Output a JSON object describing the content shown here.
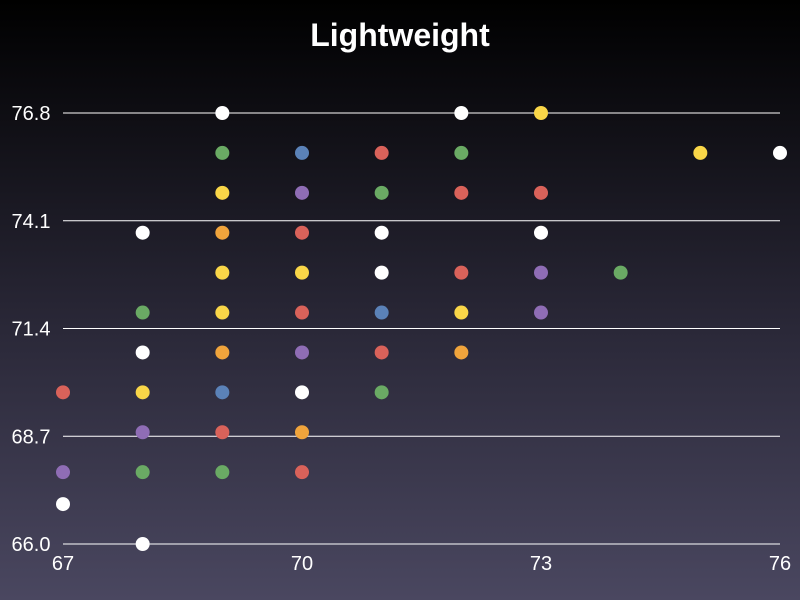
{
  "chart_data": {
    "type": "scatter",
    "title": "Lightweight",
    "xlabel": "",
    "ylabel": "",
    "xlim": [
      67,
      76
    ],
    "ylim": [
      66.0,
      76.8
    ],
    "x_ticks": [
      "67",
      "70",
      "73",
      "76"
    ],
    "y_ticks": [
      "66.0",
      "68.7",
      "71.4",
      "74.1",
      "76.8"
    ],
    "grid": "horizontal",
    "legend": "none",
    "colors": {
      "white": "#ffffff",
      "yellow": "#f9d648",
      "orange": "#f0a43c",
      "red": "#d9625a",
      "green": "#6aaa64",
      "blue": "#5b82b8",
      "purple": "#8f6db5"
    },
    "points": [
      {
        "x": 69,
        "y": 76.8,
        "color": "white"
      },
      {
        "x": 72,
        "y": 76.8,
        "color": "white"
      },
      {
        "x": 73,
        "y": 76.8,
        "color": "yellow"
      },
      {
        "x": 69,
        "y": 75.8,
        "color": "green"
      },
      {
        "x": 70,
        "y": 75.8,
        "color": "blue"
      },
      {
        "x": 71,
        "y": 75.8,
        "color": "red"
      },
      {
        "x": 72,
        "y": 75.8,
        "color": "green"
      },
      {
        "x": 75,
        "y": 75.8,
        "color": "yellow"
      },
      {
        "x": 76,
        "y": 75.8,
        "color": "white"
      },
      {
        "x": 69,
        "y": 74.8,
        "color": "yellow"
      },
      {
        "x": 70,
        "y": 74.8,
        "color": "purple"
      },
      {
        "x": 71,
        "y": 74.8,
        "color": "green"
      },
      {
        "x": 72,
        "y": 74.8,
        "color": "red"
      },
      {
        "x": 73,
        "y": 74.8,
        "color": "red"
      },
      {
        "x": 68,
        "y": 73.8,
        "color": "white"
      },
      {
        "x": 69,
        "y": 73.8,
        "color": "orange"
      },
      {
        "x": 70,
        "y": 73.8,
        "color": "red"
      },
      {
        "x": 71,
        "y": 73.8,
        "color": "white"
      },
      {
        "x": 73,
        "y": 73.8,
        "color": "white"
      },
      {
        "x": 69,
        "y": 72.8,
        "color": "yellow"
      },
      {
        "x": 70,
        "y": 72.8,
        "color": "yellow"
      },
      {
        "x": 71,
        "y": 72.8,
        "color": "white"
      },
      {
        "x": 72,
        "y": 72.8,
        "color": "red"
      },
      {
        "x": 73,
        "y": 72.8,
        "color": "purple"
      },
      {
        "x": 74,
        "y": 72.8,
        "color": "green"
      },
      {
        "x": 68,
        "y": 71.8,
        "color": "green"
      },
      {
        "x": 69,
        "y": 71.8,
        "color": "yellow"
      },
      {
        "x": 70,
        "y": 71.8,
        "color": "red"
      },
      {
        "x": 71,
        "y": 71.8,
        "color": "blue"
      },
      {
        "x": 72,
        "y": 71.8,
        "color": "yellow"
      },
      {
        "x": 73,
        "y": 71.8,
        "color": "purple"
      },
      {
        "x": 68,
        "y": 70.8,
        "color": "white"
      },
      {
        "x": 69,
        "y": 70.8,
        "color": "orange"
      },
      {
        "x": 70,
        "y": 70.8,
        "color": "purple"
      },
      {
        "x": 71,
        "y": 70.8,
        "color": "red"
      },
      {
        "x": 72,
        "y": 70.8,
        "color": "orange"
      },
      {
        "x": 67,
        "y": 69.8,
        "color": "red"
      },
      {
        "x": 68,
        "y": 69.8,
        "color": "yellow"
      },
      {
        "x": 69,
        "y": 69.8,
        "color": "blue"
      },
      {
        "x": 70,
        "y": 69.8,
        "color": "white"
      },
      {
        "x": 71,
        "y": 69.8,
        "color": "green"
      },
      {
        "x": 68,
        "y": 68.8,
        "color": "purple"
      },
      {
        "x": 69,
        "y": 68.8,
        "color": "red"
      },
      {
        "x": 70,
        "y": 68.8,
        "color": "orange"
      },
      {
        "x": 67,
        "y": 67.8,
        "color": "purple"
      },
      {
        "x": 68,
        "y": 67.8,
        "color": "green"
      },
      {
        "x": 69,
        "y": 67.8,
        "color": "green"
      },
      {
        "x": 70,
        "y": 67.8,
        "color": "red"
      },
      {
        "x": 67,
        "y": 67.0,
        "color": "white"
      },
      {
        "x": 68,
        "y": 66.0,
        "color": "white"
      }
    ]
  }
}
